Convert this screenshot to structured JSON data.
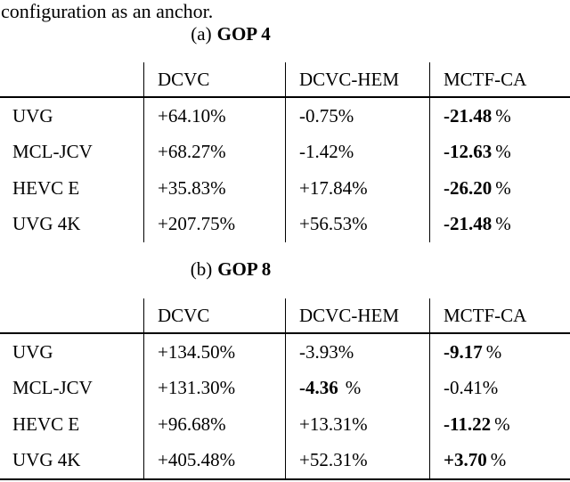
{
  "intro_text": "configuration as an anchor.",
  "tables": [
    {
      "caption": {
        "prefix": "(a)",
        "title": "GOP 4"
      },
      "col_headers": [
        "DCVC",
        "DCVC-HEM",
        "MCTF-CA"
      ],
      "rows": [
        {
          "label": "UVG",
          "cells": [
            {
              "v": "+64.10",
              "s": "%",
              "bold": false
            },
            {
              "v": "-0.75",
              "s": "%",
              "bold": false
            },
            {
              "v": "-21.48",
              "s": "%",
              "bold": true
            }
          ]
        },
        {
          "label": "MCL-JCV",
          "cells": [
            {
              "v": "+68.27",
              "s": "%",
              "bold": false
            },
            {
              "v": "-1.42",
              "s": "%",
              "bold": false
            },
            {
              "v": "-12.63",
              "s": "%",
              "bold": true
            }
          ]
        },
        {
          "label": "HEVC E",
          "cells": [
            {
              "v": "+35.83",
              "s": "%",
              "bold": false
            },
            {
              "v": "+17.84",
              "s": "%",
              "bold": false
            },
            {
              "v": "-26.20",
              "s": "%",
              "bold": true
            }
          ]
        },
        {
          "label": "UVG 4K",
          "cells": [
            {
              "v": "+207.75",
              "s": "%",
              "bold": false
            },
            {
              "v": "+56.53",
              "s": "%",
              "bold": false
            },
            {
              "v": "-21.48",
              "s": "%",
              "bold": true
            }
          ]
        }
      ]
    },
    {
      "caption": {
        "prefix": "(b)",
        "title": "GOP 8"
      },
      "col_headers": [
        "DCVC",
        "DCVC-HEM",
        "MCTF-CA"
      ],
      "rows": [
        {
          "label": "UVG",
          "cells": [
            {
              "v": "+134.50",
              "s": "%",
              "bold": false
            },
            {
              "v": "-3.93",
              "s": "%",
              "bold": false
            },
            {
              "v": "-9.17",
              "s": "%",
              "bold": true
            }
          ]
        },
        {
          "label": "MCL-JCV",
          "cells": [
            {
              "v": "+131.30",
              "s": "%",
              "bold": false
            },
            {
              "v": "-4.36",
              "s": "%",
              "bold": true
            },
            {
              "v": "-0.41",
              "s": "%",
              "bold": false
            }
          ]
        },
        {
          "label": "HEVC E",
          "cells": [
            {
              "v": "+96.68",
              "s": "%",
              "bold": false
            },
            {
              "v": "+13.31",
              "s": "%",
              "bold": false
            },
            {
              "v": "-11.22",
              "s": "%",
              "bold": true
            }
          ]
        },
        {
          "label": "UVG 4K",
          "cells": [
            {
              "v": "+405.48",
              "s": "%",
              "bold": false
            },
            {
              "v": "+52.31",
              "s": "%",
              "bold": false
            },
            {
              "v": "+3.70",
              "s": "%",
              "bold": true
            }
          ]
        }
      ]
    }
  ]
}
